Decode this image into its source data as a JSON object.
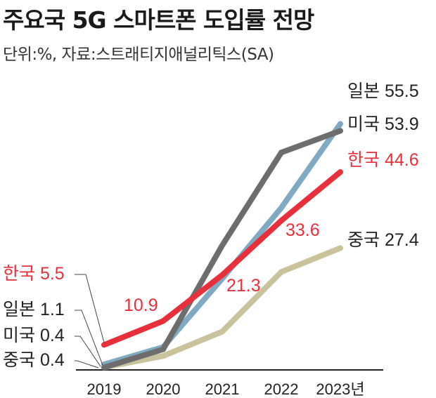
{
  "header": {
    "title": "주요국 5G 스마트폰 도입률 전망",
    "subtitle": "단위:%, 자료:스트래티지애널리틱스(SA)"
  },
  "chart_data": {
    "type": "line",
    "x": [
      "2019",
      "2020",
      "2021",
      "2022",
      "2023"
    ],
    "x_tick_labels": [
      "2019",
      "2020",
      "2021",
      "2022",
      "2023년"
    ],
    "ylim": [
      0,
      60
    ],
    "grid": false,
    "series": [
      {
        "name": "중국",
        "color": "#c9c29a",
        "values": [
          0.4,
          3.0,
          8.5,
          22.0,
          27.4
        ],
        "start_label": "중국 0.4",
        "end_label": "중국 27.4"
      },
      {
        "name": "일본",
        "color": "#7faac3",
        "values": [
          1.1,
          5.0,
          20.5,
          36.5,
          55.5
        ],
        "start_label": "일본 1.1",
        "end_label": "일본 55.5"
      },
      {
        "name": "미국",
        "color": "#6d6d6d",
        "values": [
          0.4,
          4.5,
          28.0,
          49.0,
          53.9
        ],
        "start_label": "미국 0.4",
        "end_label": "미국 53.9"
      },
      {
        "name": "한국",
        "color": "#e8303a",
        "values": [
          5.5,
          10.9,
          21.3,
          33.6,
          44.6
        ],
        "start_label": "한국 5.5",
        "end_label": "한국 44.6"
      }
    ],
    "annotations": [
      {
        "series": "한국",
        "x": "2020",
        "text": "10.9"
      },
      {
        "series": "한국",
        "x": "2021",
        "text": "21.3"
      },
      {
        "series": "한국",
        "x": "2022",
        "text": "33.6"
      }
    ]
  }
}
